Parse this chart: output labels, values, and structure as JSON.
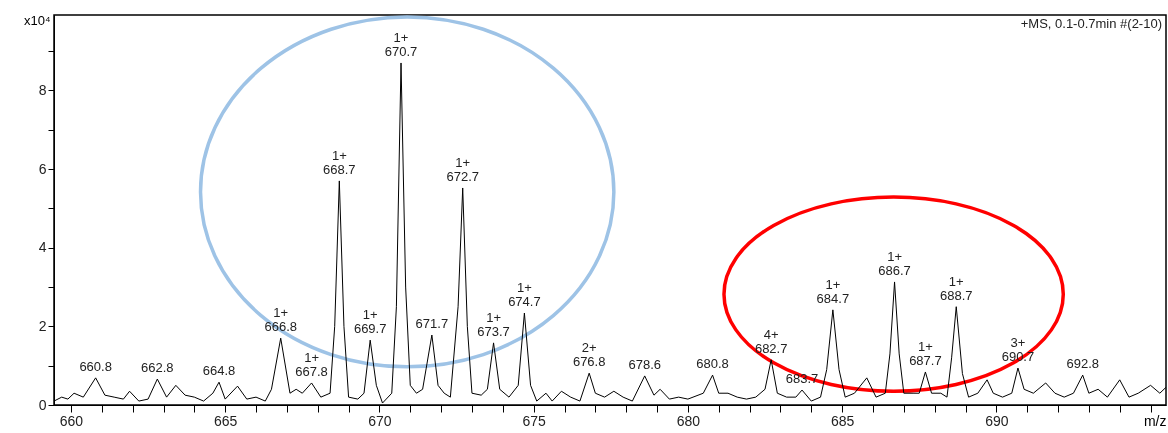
{
  "chart_data": {
    "type": "line",
    "xlabel": "m/z",
    "ylabel": "x10⁴",
    "xlim": [
      659.45,
      695.5
    ],
    "ylim": [
      0,
      9.92
    ],
    "xticks": [
      660,
      {
        "value": 661,
        "label": null
      },
      {
        "value": 662,
        "label": null
      },
      {
        "value": 663,
        "label": null
      },
      {
        "value": 664,
        "label": null
      },
      665,
      {
        "value": 666,
        "label": null
      },
      {
        "value": 667,
        "label": null
      },
      {
        "value": 668,
        "label": null
      },
      {
        "value": 669,
        "label": null
      },
      670,
      {
        "value": 671,
        "label": null
      },
      {
        "value": 672,
        "label": null
      },
      {
        "value": 673,
        "label": null
      },
      {
        "value": 674,
        "label": null
      },
      675,
      {
        "value": 676,
        "label": null
      },
      {
        "value": 677,
        "label": null
      },
      {
        "value": 678,
        "label": null
      },
      {
        "value": 679,
        "label": null
      },
      680,
      {
        "value": 681,
        "label": null
      },
      {
        "value": 682,
        "label": null
      },
      {
        "value": 683,
        "label": null
      },
      {
        "value": 684,
        "label": null
      },
      685,
      {
        "value": 686,
        "label": null
      },
      {
        "value": 687,
        "label": null
      },
      {
        "value": 688,
        "label": null
      },
      {
        "value": 689,
        "label": null
      },
      690,
      {
        "value": 691,
        "label": null
      },
      {
        "value": 692,
        "label": null
      },
      {
        "value": 693,
        "label": null
      },
      {
        "value": 694,
        "label": null
      },
      {
        "value": 695,
        "label": null
      }
    ],
    "yticks": [
      0,
      {
        "value": 1,
        "label": null
      },
      2,
      {
        "value": 3,
        "label": null
      },
      4,
      {
        "value": 5,
        "label": null
      },
      6,
      {
        "value": 7,
        "label": null
      },
      8,
      {
        "value": 9,
        "label": null
      }
    ],
    "grid": false,
    "marker": "none",
    "line_style": "solid",
    "series": [
      {
        "color": "#000000",
        "x": [
          659.45,
          659.7,
          659.9,
          660.1,
          660.4,
          660.8,
          661.1,
          661.4,
          661.7,
          661.9,
          662.2,
          662.5,
          662.8,
          663.1,
          663.4,
          663.7,
          664.0,
          664.3,
          664.6,
          664.8,
          665.0,
          665.4,
          665.7,
          666.0,
          666.3,
          666.5,
          666.8,
          667.1,
          667.3,
          667.5,
          667.8,
          668.1,
          668.4,
          668.55,
          668.7,
          668.85,
          669.0,
          669.3,
          669.5,
          669.7,
          669.9,
          670.1,
          670.4,
          670.55,
          670.7,
          670.85,
          671.0,
          671.2,
          671.4,
          671.7,
          671.9,
          672.1,
          672.3,
          672.55,
          672.7,
          672.85,
          673.0,
          673.3,
          673.5,
          673.7,
          673.9,
          674.2,
          674.5,
          674.7,
          674.9,
          675.1,
          675.4,
          675.6,
          675.9,
          676.2,
          676.5,
          676.8,
          677.0,
          677.3,
          677.6,
          677.9,
          678.2,
          678.6,
          678.9,
          679.1,
          679.4,
          679.7,
          680.0,
          680.5,
          680.8,
          681.0,
          681.3,
          681.6,
          681.9,
          682.2,
          682.5,
          682.7,
          682.9,
          683.2,
          683.5,
          683.7,
          684.0,
          684.3,
          684.5,
          684.7,
          684.9,
          685.1,
          685.4,
          685.8,
          686.1,
          686.4,
          686.55,
          686.7,
          686.85,
          687.0,
          687.3,
          687.5,
          687.7,
          687.9,
          688.2,
          688.4,
          688.55,
          688.7,
          688.9,
          689.1,
          689.4,
          689.7,
          689.9,
          690.2,
          690.5,
          690.7,
          690.9,
          691.2,
          691.6,
          691.9,
          692.2,
          692.5,
          692.8,
          693.0,
          693.3,
          693.6,
          694.0,
          694.3,
          694.6,
          695.0,
          695.3,
          695.5
        ],
        "values": [
          0.1,
          0.2,
          0.15,
          0.3,
          0.2,
          0.69,
          0.25,
          0.2,
          0.15,
          0.35,
          0.1,
          0.15,
          0.66,
          0.2,
          0.5,
          0.25,
          0.2,
          0.1,
          0.3,
          0.58,
          0.15,
          0.48,
          0.15,
          0.2,
          0.1,
          0.4,
          1.7,
          0.3,
          0.4,
          0.3,
          0.56,
          0.2,
          0.3,
          2.0,
          5.7,
          2.0,
          0.2,
          0.15,
          0.3,
          1.65,
          0.5,
          0.05,
          0.3,
          2.5,
          8.7,
          3.0,
          0.5,
          0.3,
          0.4,
          1.78,
          0.5,
          0.3,
          0.2,
          2.5,
          5.52,
          2.0,
          0.3,
          0.25,
          0.4,
          1.58,
          0.4,
          0.2,
          0.5,
          2.34,
          0.5,
          0.1,
          0.3,
          0.1,
          0.35,
          0.2,
          0.1,
          0.81,
          0.3,
          0.2,
          0.35,
          0.2,
          0.1,
          0.74,
          0.25,
          0.4,
          0.15,
          0.2,
          0.15,
          0.3,
          0.76,
          0.3,
          0.3,
          0.2,
          0.15,
          0.2,
          0.4,
          1.15,
          0.3,
          0.2,
          0.2,
          0.38,
          0.1,
          0.2,
          0.9,
          2.42,
          0.9,
          0.2,
          0.3,
          0.69,
          0.2,
          0.3,
          1.3,
          3.13,
          1.3,
          0.3,
          0.3,
          0.3,
          0.84,
          0.3,
          0.3,
          0.2,
          1.2,
          2.5,
          0.8,
          0.2,
          0.3,
          0.64,
          0.3,
          0.2,
          0.3,
          0.94,
          0.4,
          0.3,
          0.56,
          0.3,
          0.2,
          0.3,
          0.76,
          0.3,
          0.4,
          0.2,
          0.64,
          0.2,
          0.3,
          0.5,
          0.3,
          0.45
        ]
      }
    ],
    "annotations": [
      "+MS, 0.1-0.7min #(2-10)",
      {
        "text": "660.8",
        "x": 660.8,
        "y": 0.69
      },
      {
        "text": "662.8",
        "x": 662.8,
        "y": 0.66
      },
      {
        "text": "664.8",
        "x": 664.8,
        "y": 0.58
      },
      {
        "text": "1+\n666.8",
        "x": 666.8,
        "y": 1.7
      },
      {
        "text": "1+\n667.8",
        "x": 667.8,
        "y": 0.56
      },
      {
        "text": "1+\n668.7",
        "x": 668.7,
        "y": 5.7
      },
      {
        "text": "1+\n669.7",
        "x": 669.7,
        "y": 1.65
      },
      {
        "text": "1+\n670.7",
        "x": 670.7,
        "y": 8.7
      },
      {
        "text": "671.7",
        "x": 671.7,
        "y": 1.78
      },
      {
        "text": "1+\n672.7",
        "x": 672.7,
        "y": 5.52
      },
      {
        "text": "1+\n673.7",
        "x": 673.7,
        "y": 1.58
      },
      {
        "text": "1+\n674.7",
        "x": 674.7,
        "y": 2.34
      },
      {
        "text": "2+\n676.8",
        "x": 676.8,
        "y": 0.81
      },
      {
        "text": "678.6",
        "x": 678.6,
        "y": 0.74
      },
      {
        "text": "680.8",
        "x": 680.8,
        "y": 0.76
      },
      {
        "text": "4+\n682.7",
        "x": 682.7,
        "y": 1.15
      },
      {
        "text": "683.7",
        "x": 683.7,
        "y": 0.38
      },
      {
        "text": "1+\n684.7",
        "x": 684.7,
        "y": 2.42
      },
      {
        "text": "1+\n686.7",
        "x": 686.7,
        "y": 3.13
      },
      {
        "text": "1+\n687.7",
        "x": 687.7,
        "y": 0.84
      },
      {
        "text": "1+\n688.7",
        "x": 688.7,
        "y": 2.5
      },
      {
        "text": "3+\n690.7",
        "x": 690.7,
        "y": 0.94
      },
      {
        "text": "692.8",
        "x": 692.8,
        "y": 0.76
      }
    ]
  }
}
